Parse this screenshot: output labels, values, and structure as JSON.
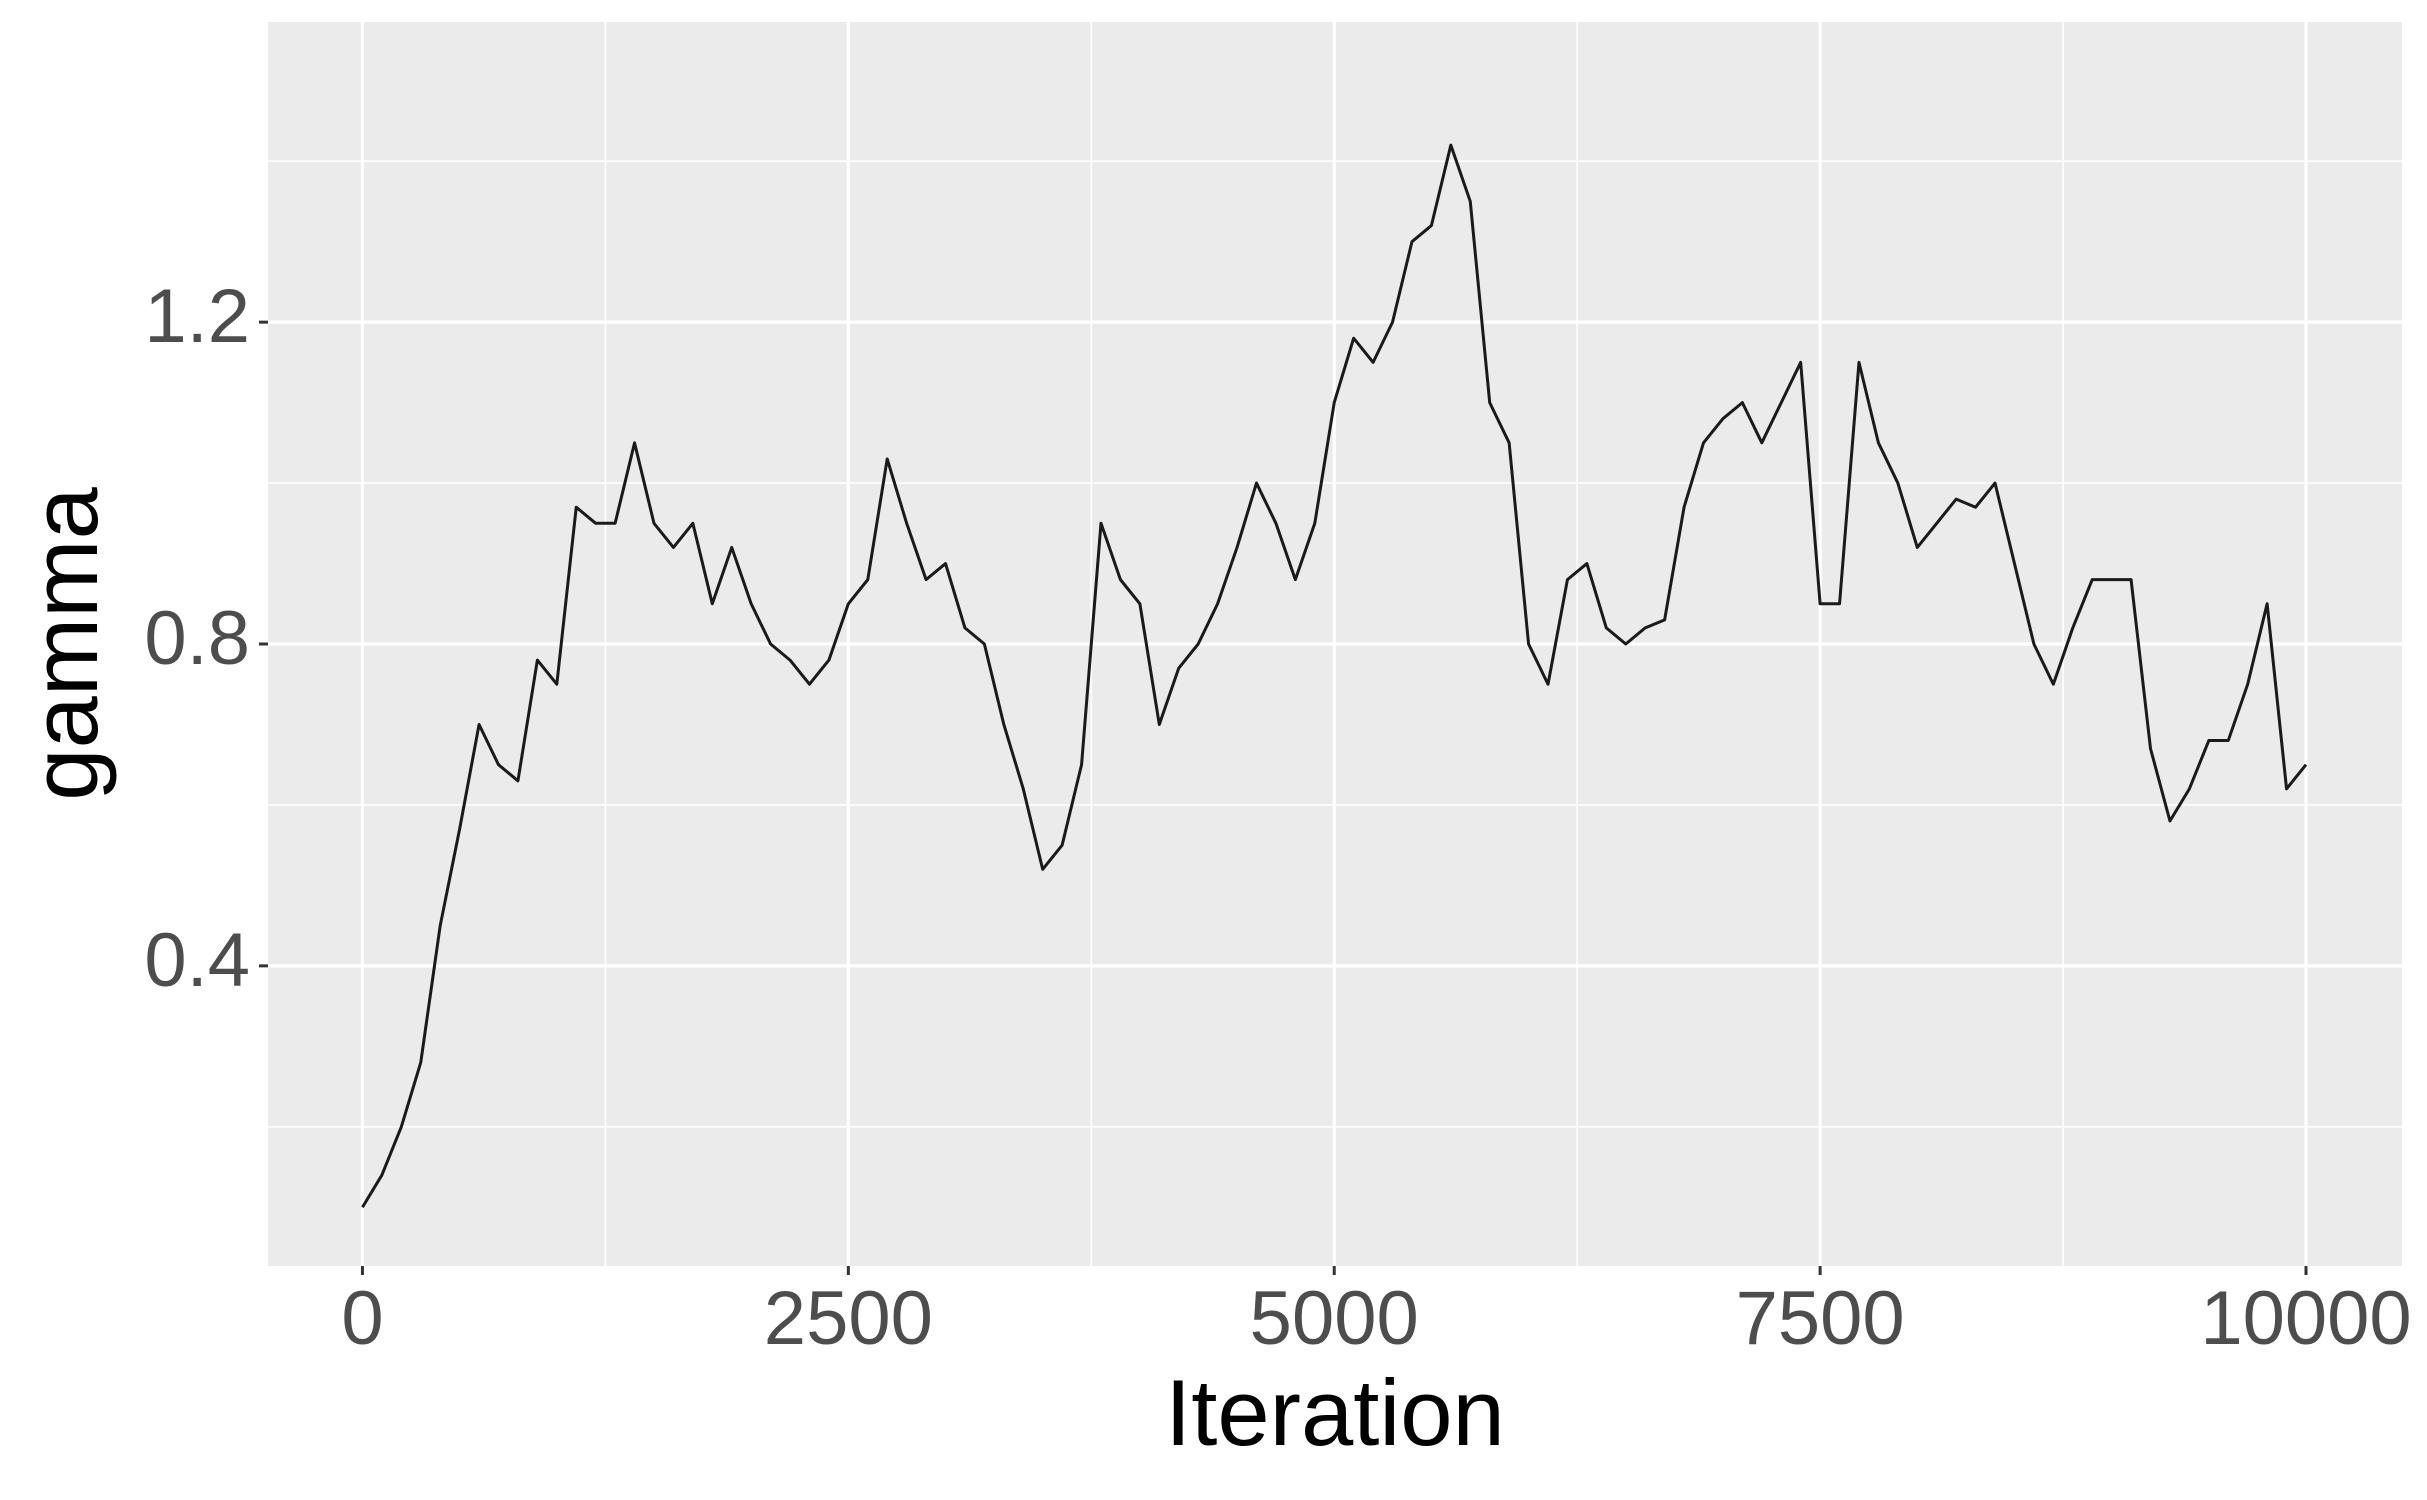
{
  "chart_data": {
    "type": "line",
    "x_label": "Iteration",
    "y_label": "gamma",
    "x": [
      0,
      100,
      200,
      300,
      400,
      500,
      600,
      700,
      800,
      900,
      1000,
      1100,
      1200,
      1300,
      1400,
      1500,
      1600,
      1700,
      1800,
      1900,
      2000,
      2100,
      2200,
      2300,
      2400,
      2500,
      2600,
      2700,
      2800,
      2900,
      3000,
      3100,
      3200,
      3300,
      3400,
      3500,
      3600,
      3700,
      3800,
      3900,
      4000,
      4100,
      4200,
      4300,
      4400,
      4500,
      4600,
      4700,
      4800,
      4900,
      5000,
      5100,
      5200,
      5300,
      5400,
      5500,
      5600,
      5700,
      5800,
      5900,
      6000,
      6100,
      6200,
      6300,
      6400,
      6500,
      6600,
      6700,
      6800,
      6900,
      7000,
      7100,
      7200,
      7300,
      7400,
      7500,
      7600,
      7700,
      7800,
      7900,
      8000,
      8100,
      8200,
      8300,
      8400,
      8500,
      8600,
      8700,
      8800,
      8900,
      9000,
      9100,
      9200,
      9300,
      9400,
      9500,
      9600,
      9700,
      9800,
      9900,
      10000
    ],
    "series": [
      {
        "color": "#1a1a1a",
        "values": [
          0.1,
          0.14,
          0.2,
          0.28,
          0.45,
          0.57,
          0.7,
          0.65,
          0.63,
          0.78,
          0.75,
          0.97,
          0.95,
          0.95,
          1.05,
          0.95,
          0.92,
          0.95,
          0.85,
          0.92,
          0.85,
          0.8,
          0.78,
          0.75,
          0.78,
          0.85,
          0.88,
          1.03,
          0.95,
          0.88,
          0.9,
          0.82,
          0.8,
          0.7,
          0.62,
          0.52,
          0.55,
          0.65,
          0.95,
          0.88,
          0.85,
          0.7,
          0.77,
          0.8,
          0.85,
          0.92,
          1.0,
          0.95,
          0.88,
          0.95,
          1.1,
          1.18,
          1.15,
          1.2,
          1.3,
          1.32,
          1.42,
          1.35,
          1.1,
          1.05,
          0.8,
          0.75,
          0.88,
          0.9,
          0.82,
          0.8,
          0.82,
          0.83,
          0.97,
          1.05,
          1.08,
          1.1,
          1.05,
          1.1,
          1.15,
          0.85,
          0.85,
          1.15,
          1.05,
          1.0,
          0.92,
          0.95,
          0.98,
          0.97,
          1.0,
          0.9,
          0.8,
          0.75,
          0.82,
          0.88,
          0.88,
          0.88,
          0.67,
          0.58,
          0.62,
          0.68,
          0.68,
          0.75,
          0.85,
          0.62,
          0.65
        ]
      }
    ],
    "xlim": [
      -486,
      10494
    ],
    "ylim": [
      0.027,
      1.573
    ],
    "xticks": [
      0,
      2500,
      5000,
      7500,
      10000
    ],
    "yticks": [
      0.4,
      0.8,
      1.2
    ],
    "x_minor_grid": [
      1250,
      3750,
      6250,
      8750
    ],
    "y_minor_grid": [
      0.2,
      0.6,
      1.0,
      1.4
    ],
    "grid": true,
    "panel_color": "#ebebeb",
    "grid_color": "#ffffff"
  }
}
